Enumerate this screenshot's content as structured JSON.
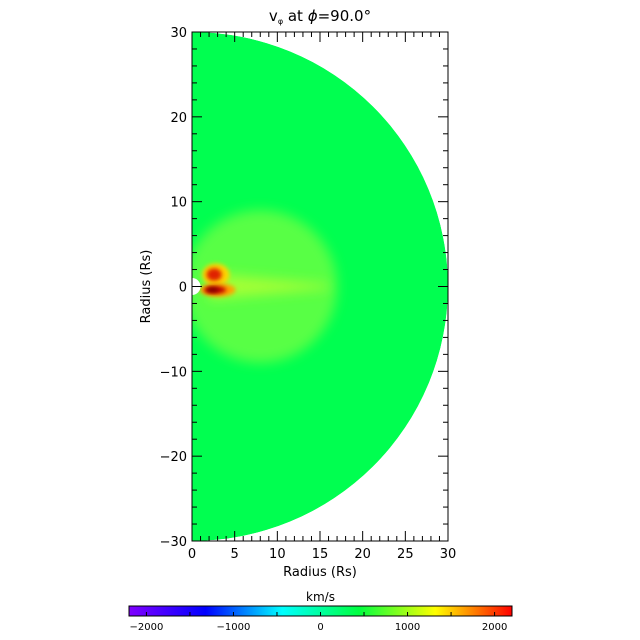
{
  "chart_data": {
    "type": "heatmap",
    "title_prefix": "v",
    "title_subscript": "φ",
    "title_mid": " at ",
    "title_phi": "ϕ",
    "title_value": "=90.0°",
    "xlabel": "Radius (Rs)",
    "ylabel": "Radius (Rs)",
    "xlim": [
      0,
      30
    ],
    "ylim": [
      -30,
      30
    ],
    "x_ticks": [
      "0",
      "5",
      "10",
      "15",
      "20",
      "25",
      "30"
    ],
    "y_ticks": [
      "−30",
      "−20",
      "−10",
      "0",
      "10",
      "20",
      "30"
    ],
    "x_tick_values": [
      0,
      5,
      10,
      15,
      20,
      25,
      30
    ],
    "y_tick_values": [
      -30,
      -20,
      -10,
      0,
      10,
      20,
      30
    ],
    "domain": "half-disk, radius 30 Rs, inner boundary ~1 Rs",
    "background_value": 500,
    "features": [
      {
        "shape": "lobe",
        "center": [
          2.8,
          1.4
        ],
        "peak_value": 1900
      },
      {
        "shape": "lobe",
        "center": [
          3.0,
          -0.4
        ],
        "peak_value": 2200
      },
      {
        "shape": "streak",
        "from": [
          3.0,
          0
        ],
        "to": [
          15.0,
          0
        ],
        "value": 1000
      }
    ],
    "colorbar": {
      "label": "km/s",
      "min": -2200,
      "max": 2200,
      "ticks": [
        "−2000",
        "−1000",
        "0",
        "1000",
        "2000"
      ],
      "tick_values": [
        -2000,
        -1000,
        0,
        1000,
        2000
      ],
      "colors": [
        "#8000ff",
        "#0000ff",
        "#00ffff",
        "#00ff40",
        "#ffff00",
        "#ff0000"
      ]
    }
  }
}
